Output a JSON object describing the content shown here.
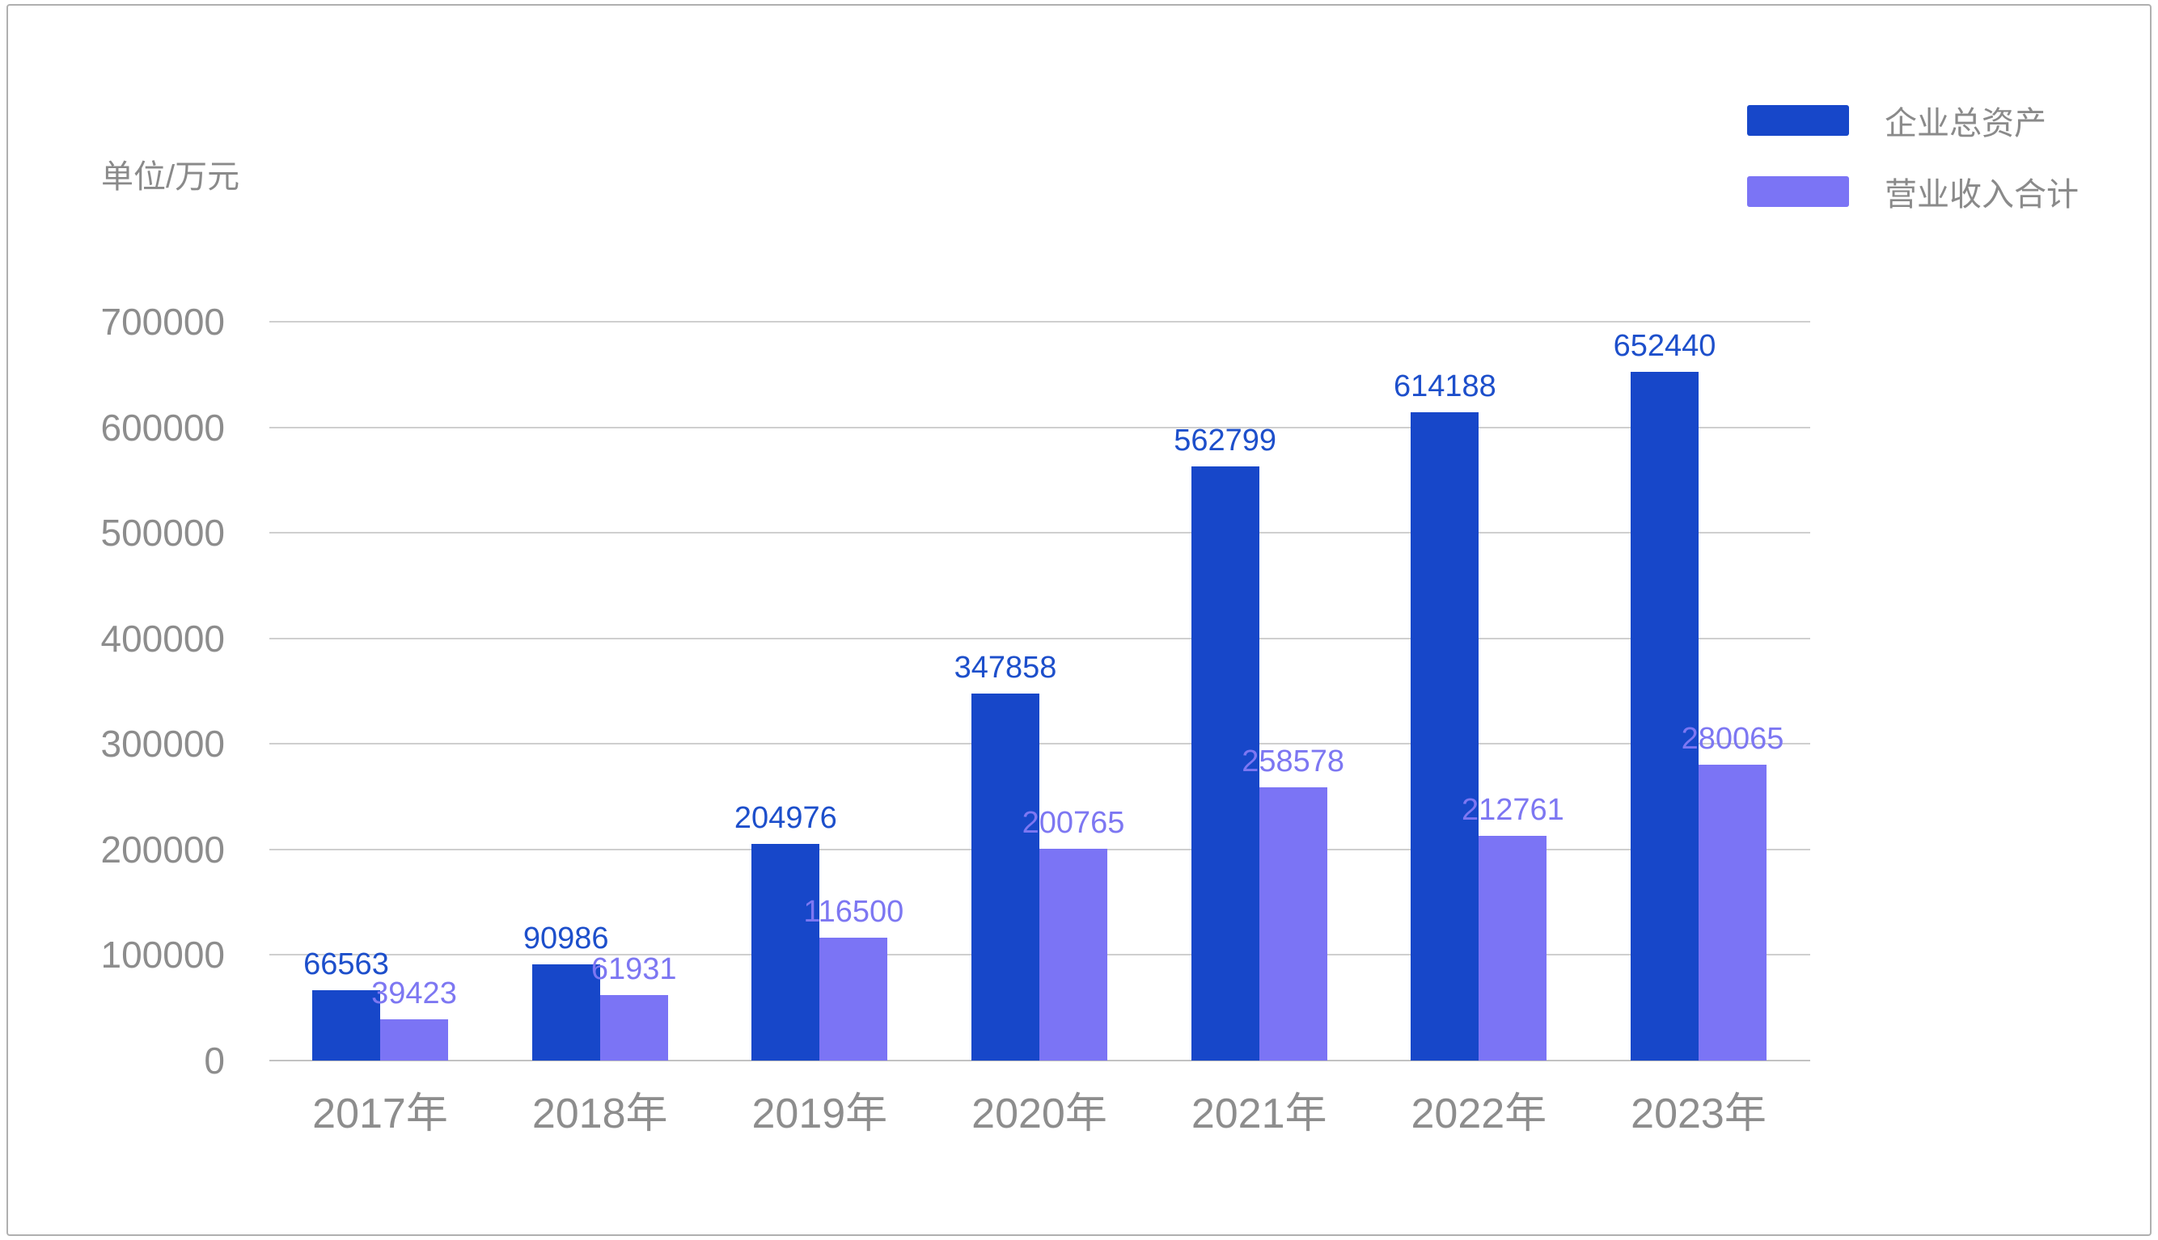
{
  "chart_data": {
    "type": "bar",
    "title": "",
    "unit_label": "单位/万元",
    "categories": [
      "2017年",
      "2018年",
      "2019年",
      "2020年",
      "2021年",
      "2022年",
      "2023年"
    ],
    "series": [
      {
        "name": "企业总资产",
        "color": "#1747C9",
        "label_color": "#1D4FCB",
        "values": [
          66563,
          90986,
          204976,
          347858,
          562799,
          614188,
          652440
        ]
      },
      {
        "name": "营业收入合计",
        "color": "#7B74F5",
        "label_color": "#7D77F2",
        "values": [
          39423,
          61931,
          116500,
          200765,
          258578,
          212761,
          280065
        ]
      }
    ],
    "ylim": [
      0,
      700000
    ],
    "yticks": [
      0,
      100000,
      200000,
      300000,
      400000,
      500000,
      600000,
      700000
    ],
    "grid": true,
    "legend_position": "top-right",
    "value_labels": "above-bars",
    "styles": {
      "background": "#FFFFFF",
      "grid_color": "#CFCFCF",
      "baseline_color": "#C2C2C2",
      "axis_text_color": "#8D8D8D",
      "unit_text_color": "#8A8A8A",
      "legend_text_color": "#8A8A8A",
      "border_color": "#B0B0B0"
    }
  }
}
